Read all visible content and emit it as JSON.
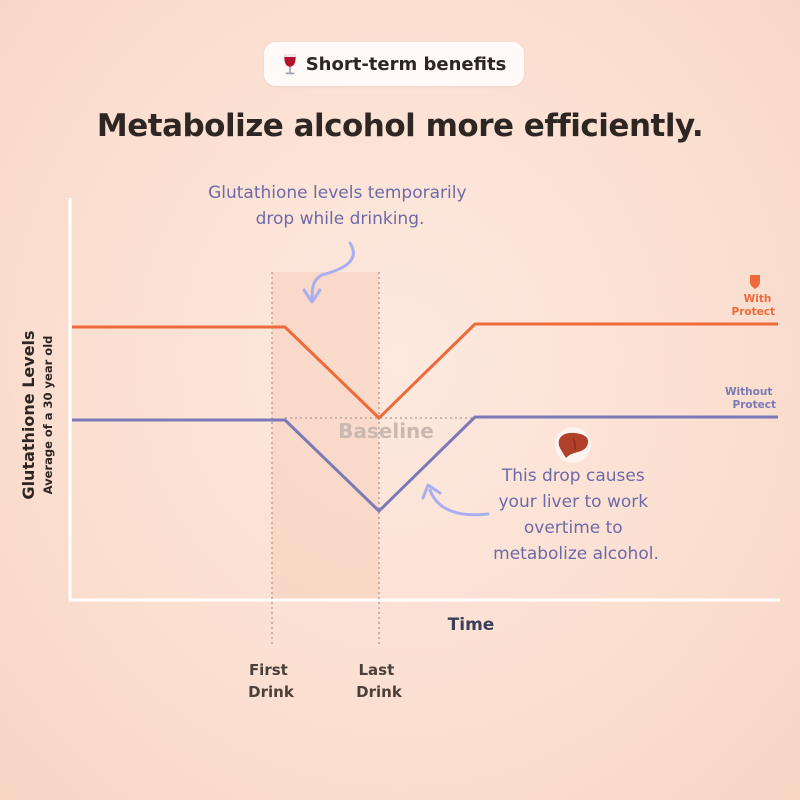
{
  "badge": {
    "icon": "wine-glass-icon",
    "label": "Short-term benefits"
  },
  "headline": "Metabolize alcohol more efficiently.",
  "chart_data": {
    "type": "line",
    "ylabel": "Glutathione Levels",
    "ylabel_sub": "Average of a 30 year old",
    "xlabel": "Time",
    "grid": false,
    "x_markers": [
      {
        "label_lines": [
          "First",
          "Drink"
        ]
      },
      {
        "label_lines": [
          "Last",
          "Drink"
        ]
      }
    ],
    "baseline_label": "Baseline",
    "series": [
      {
        "name_lines": [
          "With",
          "Protect"
        ],
        "icon": "shield-icon",
        "color": "#ef6a3a"
      },
      {
        "name_lines": [
          "Without",
          "Protect"
        ],
        "color": "#7b79b8"
      }
    ],
    "annotations": {
      "top_lines": [
        "Glutathione levels temporarily",
        "drop while drinking."
      ],
      "right_lines": [
        "This drop causes",
        "your liver to work",
        "overtime to",
        "metabolize alcohol."
      ],
      "right_icon": "liver-icon"
    },
    "colors": {
      "axis": "#ffffff",
      "marker": "#b8a49a",
      "text_dark": "#2e2622",
      "annotation": "#6d6aa8",
      "highlight": "#f6c9b3"
    }
  }
}
